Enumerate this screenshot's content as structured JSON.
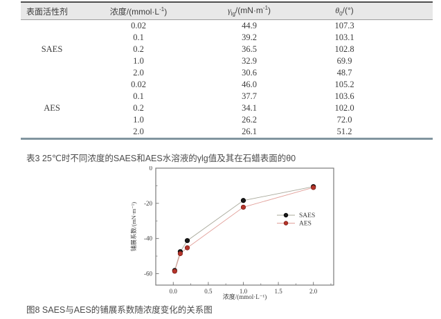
{
  "captions": {
    "table_caption": "表3 25℃时不同浓度的SAES和AES水溶液的γlg值及其在石蜡表面的θ0",
    "figure_caption": "图8 SAES与AES的铺展系数随浓度变化的关系图"
  },
  "table": {
    "headers": [
      [
        {
          "t": "text",
          "s": "表面活性剂"
        }
      ],
      [
        {
          "t": "text",
          "s": "浓度/(mmol·L"
        },
        {
          "t": "sup",
          "s": "-1"
        },
        {
          "t": "text",
          "s": ")"
        }
      ],
      [
        {
          "t": "it",
          "s": "γ"
        },
        {
          "t": "sub",
          "s": "lg"
        },
        {
          "t": "text",
          "s": "/(mN·m"
        },
        {
          "t": "sup",
          "s": "-1"
        },
        {
          "t": "text",
          "s": ")"
        }
      ],
      [
        {
          "t": "it",
          "s": "θ"
        },
        {
          "t": "sub",
          "s": "0"
        },
        {
          "t": "text",
          "s": "/(°)"
        }
      ]
    ],
    "groups": [
      {
        "name": "SAES",
        "rows": [
          [
            "0.02",
            "44.9",
            "107.3"
          ],
          [
            "0.1",
            "39.2",
            "103.1"
          ],
          [
            "0.2",
            "36.5",
            "102.8"
          ],
          [
            "1.0",
            "32.9",
            "69.9"
          ],
          [
            "2.0",
            "30.6",
            "48.7"
          ]
        ]
      },
      {
        "name": "AES",
        "rows": [
          [
            "0.02",
            "46.0",
            "105.2"
          ],
          [
            "0.1",
            "37.7",
            "103.6"
          ],
          [
            "0.2",
            "34.1",
            "102.0"
          ],
          [
            "1.0",
            "26.2",
            "72.0"
          ],
          [
            "2.0",
            "26.1",
            "51.2"
          ]
        ]
      }
    ]
  },
  "chart_data": {
    "type": "line",
    "title": "",
    "xlabel": "浓度/(mmol·L⁻¹)",
    "ylabel": "铺展系数/(mN·m⁻¹)",
    "x": [
      0.02,
      0.1,
      0.2,
      1.0,
      2.0
    ],
    "series": [
      {
        "name": "SAES",
        "marker_color": "#1a1a1a",
        "marker_edge": "#000000",
        "line_color": "#a8a89a",
        "values": [
          -58.2,
          -47.5,
          -41.2,
          -18.4,
          -10.5
        ]
      },
      {
        "name": "AES",
        "marker_color": "#b5342a",
        "marker_edge": "#7e1f1a",
        "line_color": "#e2a09a",
        "values": [
          -58.6,
          -48.6,
          -45.3,
          -22.2,
          -11.0
        ]
      }
    ],
    "xlim": [
      -0.25,
      2.29
    ],
    "ylim": [
      -66.5,
      0
    ],
    "x_major_ticks": [
      0,
      0.5,
      1.0,
      1.5,
      2.0
    ],
    "x_tick_labels": [
      "0.0",
      "0.5",
      "1.0",
      "1.5",
      "2.0"
    ],
    "x_minor_ticks": [
      0.25,
      0.75,
      1.25,
      1.75,
      2.25
    ],
    "y_major_ticks": [
      0,
      -20,
      -40,
      -60
    ],
    "y_tick_labels": [
      "0",
      "-20",
      "-40",
      "-60"
    ],
    "y_minor_ticks": [
      -10,
      -30,
      -50
    ],
    "legend_position": "right-center",
    "grid": false
  },
  "colors": {
    "table_header_bg": "#e8e8e8",
    "table_top_border": "#4d4d4d",
    "table_bottom_border": "#81959f",
    "axis_color": "#7a7a7a"
  }
}
